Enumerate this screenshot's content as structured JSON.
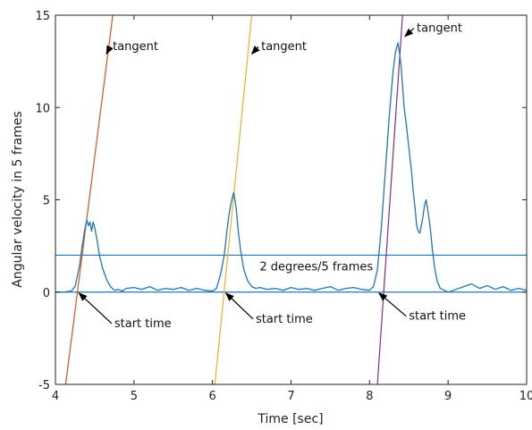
{
  "chart_data": {
    "type": "line",
    "xlabel": "Time [sec]",
    "ylabel": "Angular velocity in 5 frames",
    "xlim": [
      4,
      10
    ],
    "ylim": [
      -5,
      15
    ],
    "xticks": [
      4,
      5,
      6,
      7,
      8,
      9,
      10
    ],
    "yticks": [
      -5,
      0,
      5,
      10,
      15
    ],
    "grid": false,
    "series": [
      {
        "color": "#1f77b4",
        "x": [
          4.0,
          4.1,
          4.2,
          4.25,
          4.28,
          4.31,
          4.34,
          4.37,
          4.4,
          4.42,
          4.44,
          4.46,
          4.48,
          4.5,
          4.53,
          4.56,
          4.6,
          4.65,
          4.7,
          4.75,
          4.8,
          4.85,
          4.9,
          5.0,
          5.1,
          5.2,
          5.3,
          5.4,
          5.5,
          5.6,
          5.7,
          5.8,
          5.9,
          6.0,
          6.05,
          6.1,
          6.15,
          6.18,
          6.21,
          6.24,
          6.27,
          6.3,
          6.33,
          6.36,
          6.4,
          6.45,
          6.5,
          6.55,
          6.6,
          6.7,
          6.8,
          6.9,
          7.0,
          7.1,
          7.2,
          7.3,
          7.4,
          7.5,
          7.6,
          7.7,
          7.8,
          7.9,
          8.0,
          8.05,
          8.1,
          8.15,
          8.2,
          8.25,
          8.3,
          8.33,
          8.36,
          8.38,
          8.4,
          8.42,
          8.44,
          8.47,
          8.5,
          8.53,
          8.56,
          8.58,
          8.6,
          8.62,
          8.64,
          8.66,
          8.68,
          8.7,
          8.72,
          8.74,
          8.76,
          8.78,
          8.8,
          8.83,
          8.86,
          8.9,
          8.95,
          9.0,
          9.1,
          9.2,
          9.3,
          9.4,
          9.5,
          9.6,
          9.7,
          9.8,
          9.9,
          10.0
        ],
        "y": [
          0.0,
          0.0,
          0.05,
          0.3,
          0.9,
          1.5,
          2.5,
          3.3,
          3.9,
          3.6,
          3.8,
          3.3,
          3.8,
          3.5,
          2.8,
          2.0,
          1.3,
          0.7,
          0.3,
          0.1,
          0.15,
          0.05,
          0.2,
          0.25,
          0.15,
          0.3,
          0.1,
          0.2,
          0.15,
          0.25,
          0.1,
          0.2,
          0.1,
          0.05,
          0.2,
          0.9,
          2.0,
          3.2,
          4.2,
          4.9,
          5.4,
          4.6,
          3.2,
          2.2,
          1.2,
          0.6,
          0.3,
          0.2,
          0.25,
          0.15,
          0.2,
          0.1,
          0.25,
          0.15,
          0.2,
          0.1,
          0.2,
          0.3,
          0.1,
          0.2,
          0.25,
          0.15,
          0.1,
          0.3,
          1.2,
          3.5,
          6.5,
          9.5,
          12.0,
          13.0,
          13.5,
          13.0,
          12.3,
          11.2,
          10.0,
          9.0,
          7.8,
          6.7,
          5.3,
          4.5,
          3.6,
          3.3,
          3.2,
          3.6,
          4.1,
          4.7,
          5.0,
          4.5,
          3.9,
          3.2,
          2.3,
          1.3,
          0.6,
          0.2,
          0.1,
          0.0,
          0.15,
          0.3,
          0.45,
          0.2,
          0.35,
          0.15,
          0.3,
          0.1,
          0.2,
          0.1
        ]
      }
    ],
    "threshold_line": {
      "y": 2,
      "label": "2 degrees/5 frames",
      "color": "#1f77b4"
    },
    "zero_line": {
      "y": 0,
      "color": "#1f77b4"
    },
    "tangents": [
      {
        "color": "#d95319",
        "x1": 4.13,
        "y1": -5,
        "x2": 4.73,
        "y2": 15
      },
      {
        "color": "#edb120",
        "x1": 6.03,
        "y1": -5,
        "x2": 6.5,
        "y2": 15
      },
      {
        "color": "#7e2f8e",
        "x1": 8.1,
        "y1": -5,
        "x2": 8.42,
        "y2": 15
      }
    ],
    "annotations": [
      {
        "text": "tangent",
        "text_x": 4.73,
        "text_y": 13.1,
        "arrow_tip_x": 4.65,
        "arrow_tip_y": 12.9
      },
      {
        "text": "tangent",
        "text_x": 6.62,
        "text_y": 13.1,
        "arrow_tip_x": 6.5,
        "arrow_tip_y": 12.9
      },
      {
        "text": "tangent",
        "text_x": 8.6,
        "text_y": 14.1,
        "arrow_tip_x": 8.45,
        "arrow_tip_y": 13.85
      },
      {
        "text": "start time",
        "text_x": 4.75,
        "text_y": -1.9,
        "arrow_tip_x": 4.3,
        "arrow_tip_y": -0.05
      },
      {
        "text": "start time",
        "text_x": 6.55,
        "text_y": -1.65,
        "arrow_tip_x": 6.17,
        "arrow_tip_y": -0.05
      },
      {
        "text": "start time",
        "text_x": 8.5,
        "text_y": -1.5,
        "arrow_tip_x": 8.12,
        "arrow_tip_y": -0.05
      }
    ]
  }
}
